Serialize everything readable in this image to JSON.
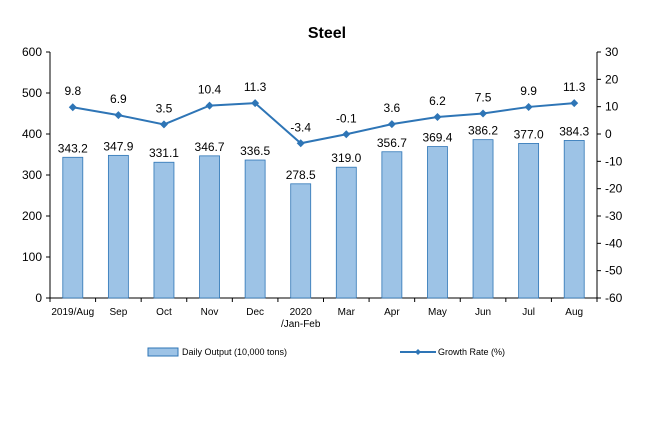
{
  "chart_data": {
    "type": "bar",
    "title": "Steel",
    "categories": [
      "2019/Aug",
      "Sep",
      "Oct",
      "Nov",
      "Dec",
      "2020\n/Jan-Feb",
      "Mar",
      "Apr",
      "May",
      "Jun",
      "Jul",
      "Aug"
    ],
    "series": [
      {
        "name": "Daily Output (10,000 tons)",
        "kind": "bar",
        "axis": "left",
        "color": "#9dc3e6",
        "values": [
          343.2,
          347.9,
          331.1,
          346.7,
          336.5,
          278.5,
          319.0,
          356.7,
          369.4,
          386.2,
          377.0,
          384.3
        ],
        "labels": [
          "343.2",
          "347.9",
          "331.1",
          "346.7",
          "336.5",
          "278.5",
          "319.0",
          "356.7",
          "369.4",
          "386.2",
          "377.0",
          "384.3"
        ]
      },
      {
        "name": "Growth Rate (%)",
        "kind": "line",
        "axis": "right",
        "color": "#2e75b6",
        "values": [
          9.8,
          6.9,
          3.5,
          10.4,
          11.3,
          -3.4,
          -0.1,
          3.6,
          6.2,
          7.5,
          9.9,
          11.3
        ],
        "labels": [
          "9.8",
          "6.9",
          "3.5",
          "10.4",
          "11.3",
          "-3.4",
          "-0.1",
          "3.6",
          "6.2",
          "7.5",
          "9.9",
          "11.3"
        ]
      }
    ],
    "ylim_left": [
      0,
      600
    ],
    "yticks_left": [
      0,
      100,
      200,
      300,
      400,
      500,
      600
    ],
    "ylim_right": [
      -60,
      30
    ],
    "yticks_right": [
      -60,
      -50,
      -40,
      -30,
      -20,
      -10,
      0,
      10,
      20,
      30
    ],
    "grid": false,
    "legend": "bottom"
  }
}
